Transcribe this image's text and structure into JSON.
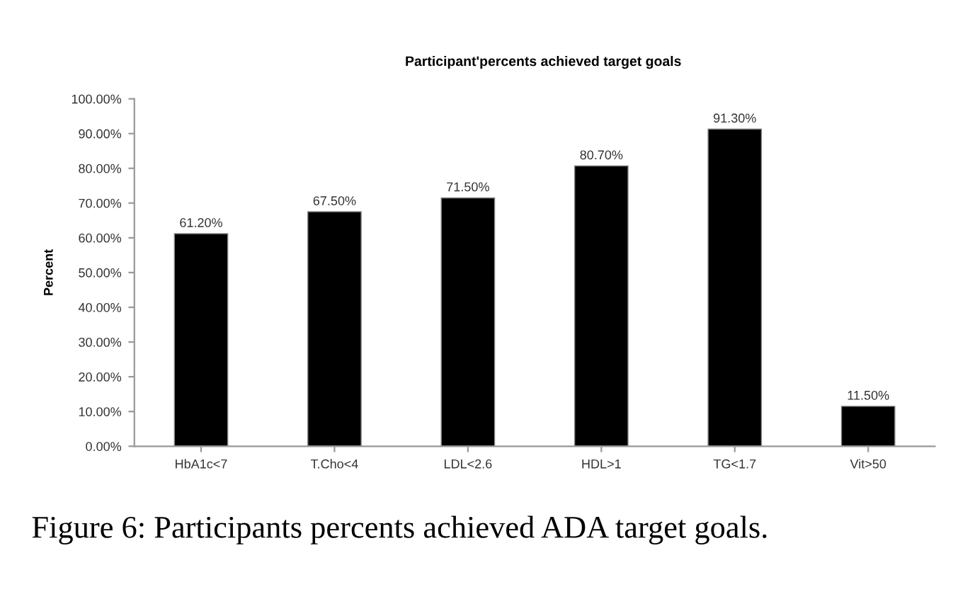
{
  "chart_data": {
    "type": "bar",
    "title": "Participant'percents achieved target goals",
    "ylabel": "Percent",
    "categories": [
      "HbA1c<7",
      "T.Cho<4",
      "LDL<2.6",
      "HDL>1",
      "TG<1.7",
      "Vit>50"
    ],
    "values": [
      61.2,
      67.5,
      71.5,
      80.7,
      91.3,
      11.5
    ],
    "color": "#000000",
    "value_labels": [
      "61.20%",
      "67.50%",
      "71.50%",
      "80.70%",
      "91.30%",
      "11.50%"
    ],
    "ylim": [
      0,
      100
    ],
    "yticks": [
      {
        "value": 0,
        "label": "0.00%"
      },
      {
        "value": 10,
        "label": "10.00%"
      },
      {
        "value": 20,
        "label": "20.00%"
      },
      {
        "value": 30,
        "label": "30.00%"
      },
      {
        "value": 40,
        "label": "40.00%"
      },
      {
        "value": 50,
        "label": "50.00%"
      },
      {
        "value": 60,
        "label": "60.00%"
      },
      {
        "value": 70,
        "label": "70.00%"
      },
      {
        "value": 80,
        "label": "80.00%"
      },
      {
        "value": 90,
        "label": "90.00%"
      },
      {
        "value": 100,
        "label": "100.00%"
      }
    ],
    "grid": false,
    "legend": false,
    "annotations": [
      "Figure 6: Participants percents achieved ADA target goals."
    ]
  }
}
